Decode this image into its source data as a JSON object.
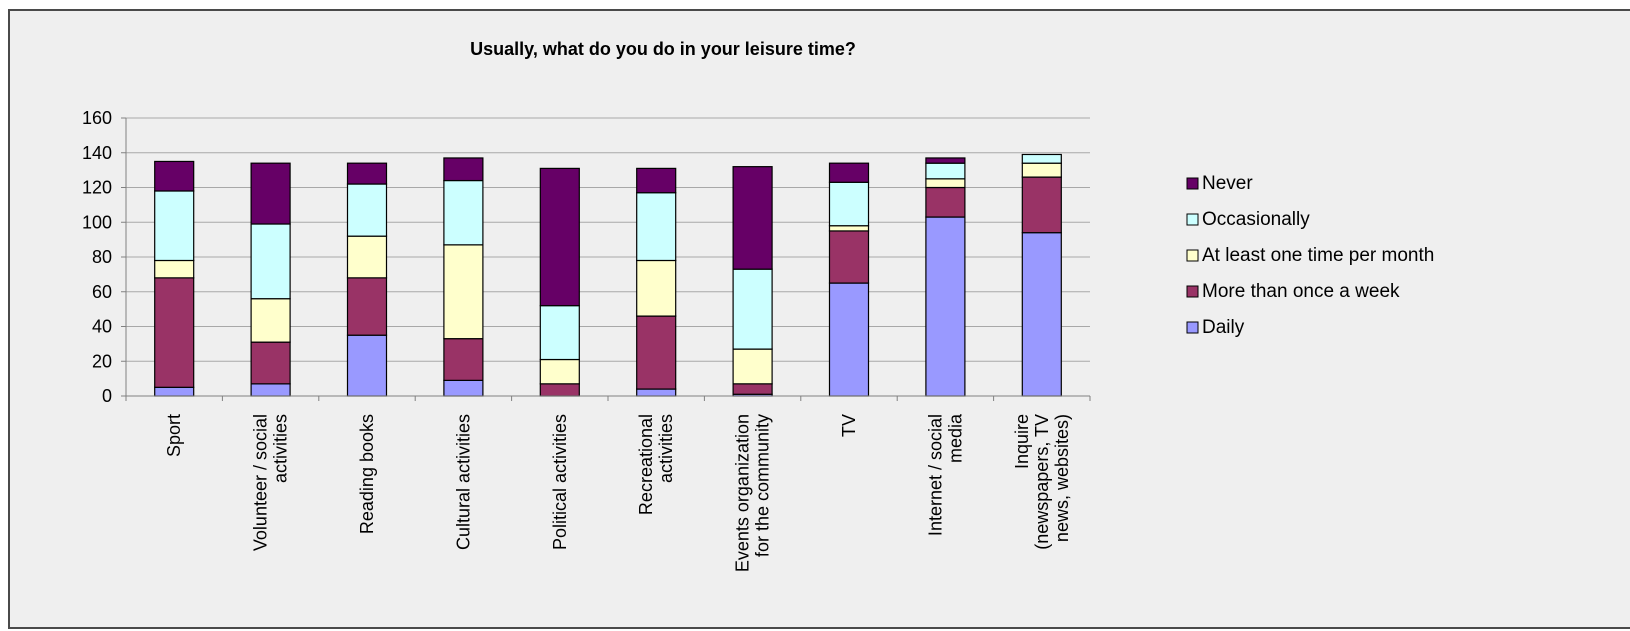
{
  "chart_data": {
    "type": "bar",
    "stacked": true,
    "title": "Usually, what do you do in your leisure time?",
    "xlabel": "",
    "ylabel": "",
    "ylim": [
      0,
      160
    ],
    "yticks": [
      0,
      20,
      40,
      60,
      80,
      100,
      120,
      140,
      160
    ],
    "grid": true,
    "legend_position": "right",
    "categories": [
      [
        "Sport"
      ],
      [
        "Volunteer / social",
        "activities"
      ],
      [
        "Reading books"
      ],
      [
        "Cultural activities"
      ],
      [
        "Political activities"
      ],
      [
        "Recreational",
        "activities"
      ],
      [
        "Events organization",
        "for the community"
      ],
      [
        "TV"
      ],
      [
        "Internet / social",
        "media"
      ],
      [
        "Inquire",
        "(newspapers, TV",
        "news, websites)"
      ]
    ],
    "series": [
      {
        "name": "Daily",
        "color": "#9999ff",
        "values": [
          5,
          7,
          35,
          9,
          0,
          4,
          1,
          65,
          103,
          94
        ]
      },
      {
        "name": "More than once a week",
        "color": "#993366",
        "values": [
          63,
          24,
          33,
          24,
          7,
          42,
          6,
          30,
          17,
          32
        ]
      },
      {
        "name": "At least one time per month",
        "color": "#ffffcc",
        "values": [
          10,
          25,
          24,
          54,
          14,
          32,
          20,
          3,
          5,
          8
        ]
      },
      {
        "name": "Occasionally",
        "color": "#ccffff",
        "values": [
          40,
          43,
          30,
          37,
          31,
          39,
          46,
          25,
          9,
          5
        ]
      },
      {
        "name": "Never",
        "color": "#660066",
        "values": [
          17,
          35,
          12,
          13,
          79,
          14,
          59,
          11,
          3,
          0
        ]
      }
    ],
    "legend_order": [
      "Never",
      "Occasionally",
      "At least one time per month",
      "More than once a week",
      "Daily"
    ]
  }
}
